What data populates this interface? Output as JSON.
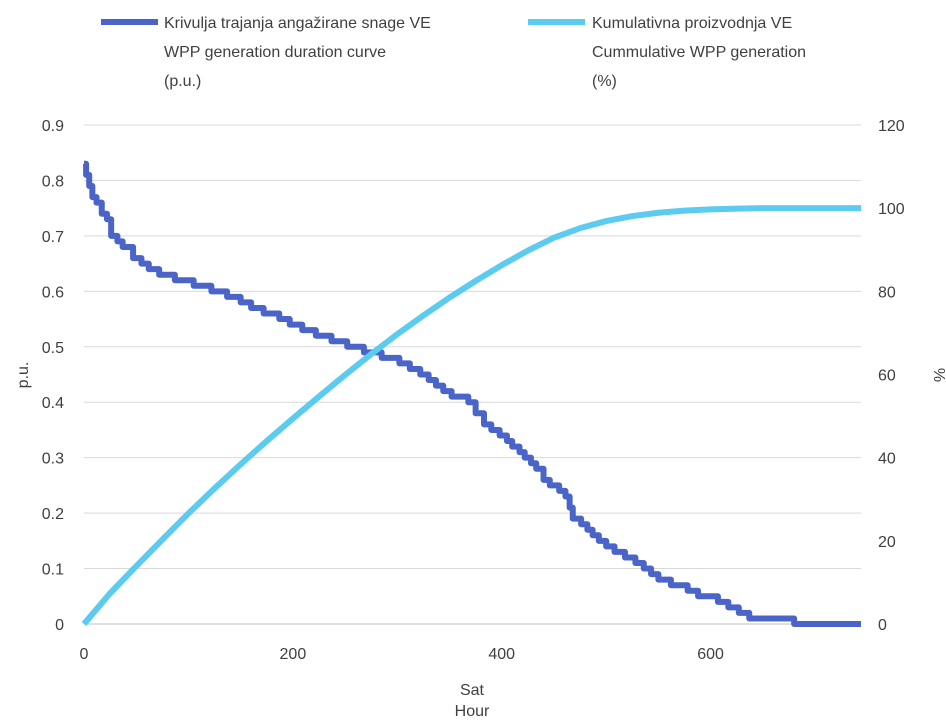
{
  "chart_data": {
    "type": "line",
    "title": "",
    "xlabel": [
      "Sat",
      "Hour"
    ],
    "ylabel_left": "p.u.",
    "ylabel_right": "%",
    "xlim": [
      0,
      744
    ],
    "ylim_left": [
      0,
      0.9
    ],
    "ylim_right": [
      0,
      120
    ],
    "x_ticks": [
      0,
      200,
      400,
      600
    ],
    "y_ticks_left": [
      "0",
      "0.1",
      "0.2",
      "0.3",
      "0.4",
      "0.5",
      "0.6",
      "0.7",
      "0.8",
      "0.9"
    ],
    "y_ticks_right": [
      "0",
      "20",
      "40",
      "60",
      "80",
      "100",
      "120"
    ],
    "grid": true,
    "legend_position": "top",
    "series": [
      {
        "name": "Krivulja trajanja angažirane snage VE WPP generation duration curve (p.u.)",
        "legend_lines": [
          "Krivulja trajanja angažirane snage VE",
          "WPP generation duration curve",
          "(p.u.)"
        ],
        "axis": "left",
        "color": "#4A64C8",
        "step": true,
        "points": [
          [
            0,
            0.83
          ],
          [
            2,
            0.81
          ],
          [
            5,
            0.79
          ],
          [
            8,
            0.77
          ],
          [
            12,
            0.76
          ],
          [
            17,
            0.74
          ],
          [
            22,
            0.73
          ],
          [
            26,
            0.7
          ],
          [
            32,
            0.69
          ],
          [
            37,
            0.68
          ],
          [
            47,
            0.66
          ],
          [
            55,
            0.65
          ],
          [
            62,
            0.64
          ],
          [
            72,
            0.63
          ],
          [
            87,
            0.62
          ],
          [
            105,
            0.61
          ],
          [
            122,
            0.6
          ],
          [
            137,
            0.59
          ],
          [
            150,
            0.58
          ],
          [
            160,
            0.57
          ],
          [
            172,
            0.56
          ],
          [
            187,
            0.55
          ],
          [
            197,
            0.54
          ],
          [
            209,
            0.53
          ],
          [
            222,
            0.52
          ],
          [
            237,
            0.51
          ],
          [
            252,
            0.5
          ],
          [
            268,
            0.49
          ],
          [
            285,
            0.48
          ],
          [
            302,
            0.47
          ],
          [
            312,
            0.46
          ],
          [
            322,
            0.45
          ],
          [
            330,
            0.44
          ],
          [
            337,
            0.43
          ],
          [
            344,
            0.42
          ],
          [
            352,
            0.41
          ],
          [
            368,
            0.4
          ],
          [
            375,
            0.38
          ],
          [
            383,
            0.36
          ],
          [
            390,
            0.35
          ],
          [
            398,
            0.34
          ],
          [
            405,
            0.33
          ],
          [
            410,
            0.32
          ],
          [
            417,
            0.31
          ],
          [
            422,
            0.3
          ],
          [
            428,
            0.29
          ],
          [
            433,
            0.28
          ],
          [
            440,
            0.26
          ],
          [
            446,
            0.25
          ],
          [
            455,
            0.24
          ],
          [
            461,
            0.23
          ],
          [
            465,
            0.21
          ],
          [
            468,
            0.19
          ],
          [
            476,
            0.18
          ],
          [
            482,
            0.17
          ],
          [
            487,
            0.16
          ],
          [
            493,
            0.15
          ],
          [
            500,
            0.14
          ],
          [
            508,
            0.13
          ],
          [
            518,
            0.12
          ],
          [
            528,
            0.11
          ],
          [
            536,
            0.1
          ],
          [
            543,
            0.09
          ],
          [
            550,
            0.08
          ],
          [
            562,
            0.07
          ],
          [
            578,
            0.06
          ],
          [
            588,
            0.05
          ],
          [
            607,
            0.04
          ],
          [
            617,
            0.03
          ],
          [
            627,
            0.02
          ],
          [
            637,
            0.01
          ],
          [
            680,
            0.0
          ],
          [
            744,
            0.0
          ]
        ]
      },
      {
        "name": "Kumulativna proizvodnja VE Cummulative WPP generation (%)",
        "legend_lines": [
          "Kumulativna proizvodnja VE",
          "Cummulative WPP generation",
          "(%)"
        ],
        "axis": "right",
        "color": "#5CCBF0",
        "step": false,
        "points": [
          [
            0,
            0
          ],
          [
            25,
            7.4
          ],
          [
            50,
            13.9
          ],
          [
            75,
            20.3
          ],
          [
            100,
            26.6
          ],
          [
            125,
            32.6
          ],
          [
            150,
            38.4
          ],
          [
            175,
            44
          ],
          [
            200,
            49.4
          ],
          [
            225,
            54.7
          ],
          [
            250,
            59.9
          ],
          [
            275,
            64.9
          ],
          [
            300,
            69.7
          ],
          [
            325,
            74.2
          ],
          [
            350,
            78.5
          ],
          [
            375,
            82.5
          ],
          [
            400,
            86.3
          ],
          [
            425,
            89.8
          ],
          [
            450,
            92.9
          ],
          [
            475,
            95.2
          ],
          [
            500,
            96.9
          ],
          [
            525,
            98.1
          ],
          [
            550,
            98.9
          ],
          [
            575,
            99.4
          ],
          [
            600,
            99.7
          ],
          [
            625,
            99.9
          ],
          [
            650,
            100
          ],
          [
            700,
            100
          ],
          [
            744,
            100
          ]
        ]
      }
    ]
  }
}
